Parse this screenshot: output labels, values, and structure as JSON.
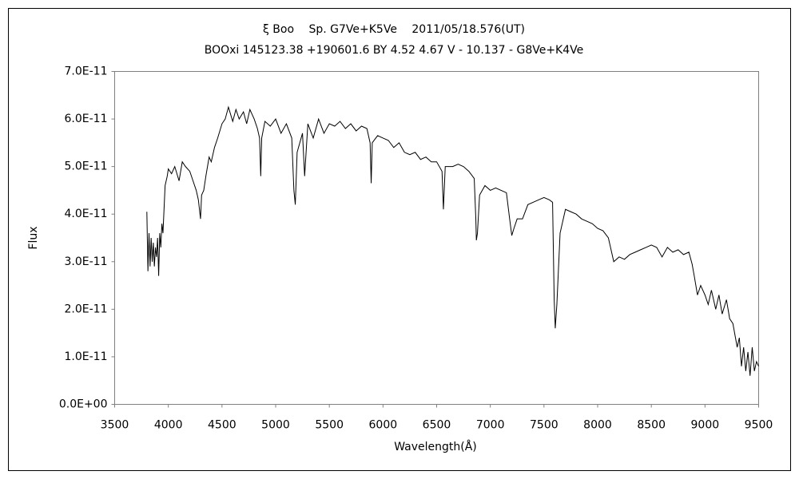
{
  "chart_data": {
    "type": "line",
    "title": "ξ Boo　 Sp. G7Ve+K5Ve　 2011/05/18.576(UT)",
    "subtitle": "BOOxi 145123.38 +190601.6 BY 4.52 4.67 V - 10.137 - G8Ve+K4Ve",
    "x_label": "Wavelength(Å)",
    "y_label": "Flux",
    "xlim": [
      3500,
      9500
    ],
    "xticks": [
      3500,
      4000,
      4500,
      5000,
      5500,
      6000,
      6500,
      7000,
      7500,
      8000,
      8500,
      9000,
      9500
    ],
    "ylim": [
      0,
      7e-11
    ],
    "yticks": [
      {
        "value": 0,
        "label": "0.0E+00"
      },
      {
        "value": 1e-11,
        "label": "1.0E-11"
      },
      {
        "value": 2e-11,
        "label": "2.0E-11"
      },
      {
        "value": 3e-11,
        "label": "3.0E-11"
      },
      {
        "value": 4e-11,
        "label": "4.0E-11"
      },
      {
        "value": 5e-11,
        "label": "5.0E-11"
      },
      {
        "value": 6e-11,
        "label": "6.0E-11"
      },
      {
        "value": 7e-11,
        "label": "7.0E-11"
      }
    ],
    "grid": false,
    "color": "#000000",
    "x": [
      3800,
      3810,
      3820,
      3830,
      3840,
      3850,
      3860,
      3870,
      3880,
      3890,
      3900,
      3910,
      3920,
      3930,
      3940,
      3950,
      3970,
      3990,
      4000,
      4030,
      4060,
      4100,
      4130,
      4160,
      4200,
      4230,
      4260,
      4280,
      4300,
      4310,
      4330,
      4350,
      4380,
      4400,
      4430,
      4460,
      4500,
      4530,
      4560,
      4600,
      4630,
      4660,
      4700,
      4730,
      4760,
      4800,
      4830,
      4850,
      4861,
      4870,
      4900,
      4950,
      5000,
      5050,
      5100,
      5150,
      5170,
      5183,
      5200,
      5250,
      5270,
      5300,
      5350,
      5400,
      5450,
      5500,
      5550,
      5600,
      5650,
      5700,
      5750,
      5800,
      5850,
      5880,
      5890,
      5900,
      5950,
      6000,
      6050,
      6100,
      6150,
      6200,
      6250,
      6300,
      6350,
      6400,
      6450,
      6500,
      6550,
      6563,
      6580,
      6650,
      6700,
      6750,
      6800,
      6850,
      6865,
      6870,
      6880,
      6900,
      6950,
      7000,
      7050,
      7100,
      7150,
      7180,
      7200,
      7220,
      7250,
      7300,
      7350,
      7400,
      7450,
      7500,
      7550,
      7580,
      7595,
      7605,
      7620,
      7650,
      7680,
      7700,
      7750,
      7800,
      7850,
      7900,
      7950,
      8000,
      8050,
      8100,
      8130,
      8150,
      8200,
      8250,
      8300,
      8350,
      8400,
      8450,
      8500,
      8550,
      8600,
      8650,
      8700,
      8750,
      8800,
      8850,
      8880,
      8900,
      8930,
      8960,
      9000,
      9030,
      9060,
      9100,
      9130,
      9160,
      9200,
      9230,
      9260,
      9300,
      9320,
      9340,
      9360,
      9380,
      9400,
      9420,
      9440,
      9460,
      9480,
      9500
    ],
    "values": [
      4.05e-11,
      2.8e-11,
      3.6e-11,
      2.9e-11,
      3.5e-11,
      3e-11,
      3.4e-11,
      2.9e-11,
      3.3e-11,
      3.1e-11,
      3.5e-11,
      2.7e-11,
      3.6e-11,
      3.3e-11,
      3.8e-11,
      3.6e-11,
      4.6e-11,
      4.8e-11,
      4.95e-11,
      4.85e-11,
      5e-11,
      4.7e-11,
      5.1e-11,
      5e-11,
      4.9e-11,
      4.7e-11,
      4.5e-11,
      4.3e-11,
      3.9e-11,
      4.4e-11,
      4.5e-11,
      4.8e-11,
      5.2e-11,
      5.1e-11,
      5.4e-11,
      5.6e-11,
      5.9e-11,
      6e-11,
      6.25e-11,
      5.95e-11,
      6.2e-11,
      6e-11,
      6.15e-11,
      5.9e-11,
      6.2e-11,
      6e-11,
      5.8e-11,
      5.6e-11,
      4.8e-11,
      5.6e-11,
      5.95e-11,
      5.85e-11,
      6e-11,
      5.7e-11,
      5.9e-11,
      5.6e-11,
      4.5e-11,
      4.2e-11,
      5.3e-11,
      5.7e-11,
      4.8e-11,
      5.9e-11,
      5.6e-11,
      6e-11,
      5.7e-11,
      5.9e-11,
      5.85e-11,
      5.95e-11,
      5.8e-11,
      5.9e-11,
      5.75e-11,
      5.85e-11,
      5.8e-11,
      5.5e-11,
      4.65e-11,
      5.5e-11,
      5.65e-11,
      5.6e-11,
      5.55e-11,
      5.4e-11,
      5.5e-11,
      5.3e-11,
      5.25e-11,
      5.3e-11,
      5.15e-11,
      5.2e-11,
      5.1e-11,
      5.1e-11,
      4.9e-11,
      4.1e-11,
      5e-11,
      5e-11,
      5.05e-11,
      5e-11,
      4.9e-11,
      4.75e-11,
      3.9e-11,
      3.45e-11,
      3.6e-11,
      4.4e-11,
      4.6e-11,
      4.5e-11,
      4.55e-11,
      4.5e-11,
      4.45e-11,
      3.9e-11,
      3.55e-11,
      3.7e-11,
      3.9e-11,
      3.9e-11,
      4.2e-11,
      4.25e-11,
      4.3e-11,
      4.35e-11,
      4.3e-11,
      4.25e-11,
      2.2e-11,
      1.6e-11,
      2.1e-11,
      3.6e-11,
      3.9e-11,
      4.1e-11,
      4.05e-11,
      4e-11,
      3.9e-11,
      3.85e-11,
      3.8e-11,
      3.7e-11,
      3.65e-11,
      3.5e-11,
      3.2e-11,
      3e-11,
      3.1e-11,
      3.05e-11,
      3.15e-11,
      3.2e-11,
      3.25e-11,
      3.3e-11,
      3.35e-11,
      3.3e-11,
      3.1e-11,
      3.3e-11,
      3.2e-11,
      3.25e-11,
      3.15e-11,
      3.2e-11,
      2.95e-11,
      2.7e-11,
      2.3e-11,
      2.5e-11,
      2.3e-11,
      2.1e-11,
      2.4e-11,
      2e-11,
      2.3e-11,
      1.9e-11,
      2.2e-11,
      1.8e-11,
      1.7e-11,
      1.2e-11,
      1.4e-11,
      8e-12,
      1.2e-11,
      7e-12,
      1.1e-11,
      6e-12,
      1.2e-11,
      7e-12,
      9e-12,
      8e-12
    ]
  }
}
